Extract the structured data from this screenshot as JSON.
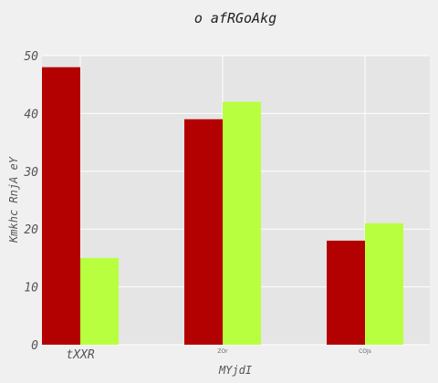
{
  "chart_data": {
    "type": "bar",
    "title": "o  afRGoAkg",
    "xlabel": "MYjdI",
    "ylabel": "Kmkhc RnjA eY",
    "categories": [
      "tXXR",
      "ZOr",
      "COJs"
    ],
    "category_label_style": [
      "large",
      "small",
      "small"
    ],
    "series": [
      {
        "values": [
          48,
          39,
          18
        ],
        "color": "#b30000"
      },
      {
        "values": [
          15,
          42,
          21
        ],
        "color": "#b8ff3f"
      }
    ],
    "ylim": [
      0,
      50
    ],
    "yticks": [
      0,
      10,
      20,
      30,
      40,
      50
    ],
    "grid": true,
    "plot_background": "#e5e5e5",
    "grid_color": "#ffffff"
  }
}
